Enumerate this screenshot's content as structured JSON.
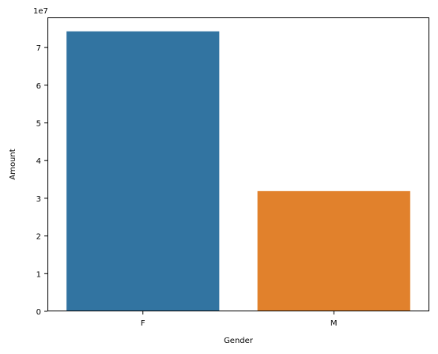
{
  "chart_data": {
    "type": "bar",
    "categories": [
      "F",
      "M"
    ],
    "values": [
      74300000,
      31900000
    ],
    "colors": [
      "#3274a1",
      "#e1812c"
    ],
    "title": "",
    "xlabel": "Gender",
    "ylabel": "Amount",
    "ylim": [
      0,
      78000000
    ],
    "yticks": [
      0,
      1,
      2,
      3,
      4,
      5,
      6,
      7
    ],
    "y_offset_label": "1e7",
    "y_scale": 10000000,
    "grid": false,
    "legend": "none"
  }
}
